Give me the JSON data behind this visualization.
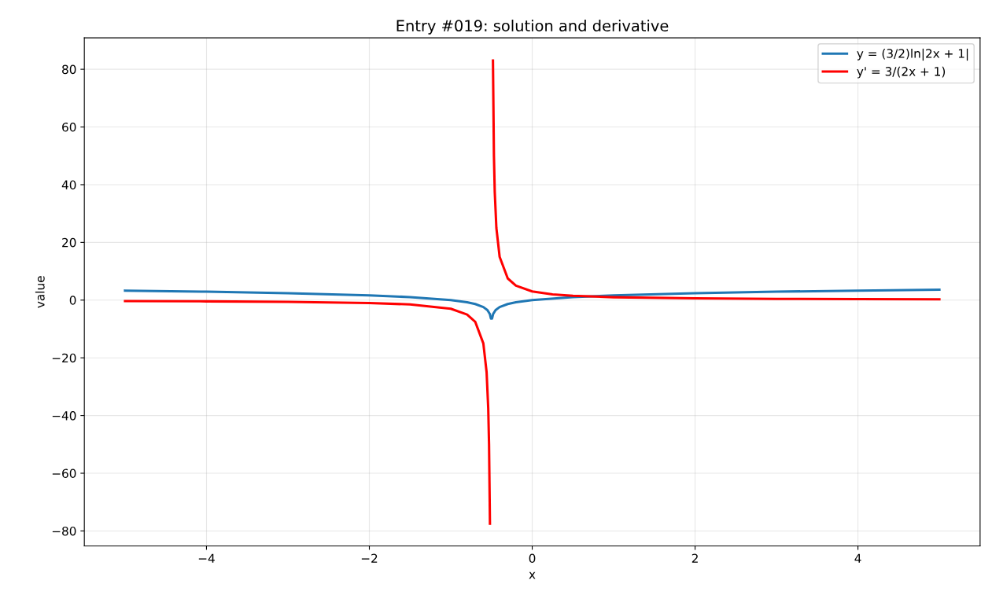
{
  "chart_data": {
    "type": "line",
    "title": "Entry #019: solution and derivative",
    "xlabel": "x",
    "ylabel": "value",
    "xlim": [
      -5.5,
      5.5
    ],
    "ylim": [
      -85.2,
      90.9
    ],
    "xticks": [
      {
        "value": -4,
        "label": "−4"
      },
      {
        "value": -2,
        "label": "−2"
      },
      0,
      2,
      4
    ],
    "yticks": [
      {
        "value": -80,
        "label": "−80"
      },
      {
        "value": -60,
        "label": "−60"
      },
      {
        "value": -40,
        "label": "−40"
      },
      {
        "value": -20,
        "label": "−20"
      },
      0,
      20,
      40,
      60,
      80
    ],
    "grid": true,
    "legend": "top right",
    "line_style": "solid",
    "marker": "none",
    "series": [
      {
        "name": "y = (3/2)ln|2x + 1|",
        "color": "#1f77b4",
        "x": [
          -5,
          -4,
          -3,
          -2,
          -1.5,
          -1,
          -0.8,
          -0.7,
          -0.6,
          -0.55,
          -0.52,
          -0.507,
          -0.493,
          -0.48,
          -0.45,
          -0.4,
          -0.3,
          -0.2,
          0,
          0.5,
          1,
          2,
          3,
          4,
          5
        ],
        "values": [
          3.3,
          2.92,
          2.41,
          1.65,
          1.04,
          0,
          -0.77,
          -1.37,
          -2.41,
          -3.45,
          -4.83,
          -6.4,
          -6.4,
          -4.83,
          -3.45,
          -2.41,
          -1.37,
          -0.77,
          0,
          1.04,
          1.65,
          2.41,
          2.92,
          3.3,
          3.6
        ]
      },
      {
        "name": "y' = 3/(2x + 1)",
        "color": "#ff0000",
        "x": [
          -5,
          -4,
          -3,
          -2,
          -1.5,
          -1,
          -0.8,
          -0.7,
          -0.6,
          -0.56,
          -0.54,
          -0.53,
          -0.519,
          -0.5,
          -0.482,
          -0.47,
          -0.46,
          -0.44,
          -0.4,
          -0.3,
          -0.2,
          0,
          0.25,
          0.5,
          1,
          2,
          3,
          4,
          5
        ],
        "values": [
          -0.33,
          -0.43,
          -0.6,
          -1,
          -1.5,
          -3,
          -5,
          -7.5,
          -15,
          -25,
          -37.5,
          -50,
          -77.5,
          null,
          83,
          50,
          37.5,
          25,
          15,
          7.5,
          5,
          3,
          2,
          1.5,
          1,
          0.6,
          0.43,
          0.33,
          0.27
        ]
      }
    ]
  }
}
